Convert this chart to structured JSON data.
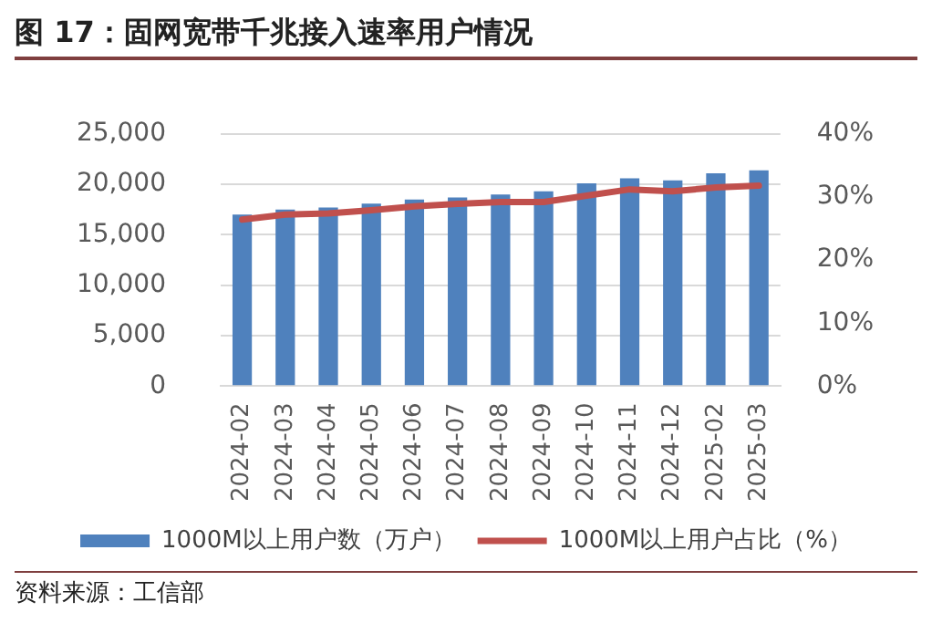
{
  "chart_data": {
    "type": "bar",
    "title": "图 17：固网宽带千兆接入速率用户情况",
    "categories": [
      "2024-02",
      "2024-03",
      "2024-04",
      "2024-05",
      "2024-06",
      "2024-07",
      "2024-08",
      "2024-09",
      "2024-10",
      "2024-11",
      "2024-12",
      "2025-02",
      "2025-03"
    ],
    "series": [
      {
        "name": "1000M以上用户数（万户）",
        "color": "#4f81bd",
        "values": [
          17000,
          17500,
          17700,
          18100,
          18500,
          18700,
          19000,
          19300,
          20100,
          20600,
          20400,
          21100,
          21400
        ]
      },
      {
        "name": "1000M以上用户占比（%）",
        "type": "line",
        "axis": "y2",
        "color": "#c0504d",
        "values": [
          26.4,
          27.2,
          27.4,
          27.9,
          28.5,
          28.9,
          29.2,
          29.2,
          30.2,
          31.2,
          30.9,
          31.5,
          31.8
        ]
      }
    ],
    "ylim": [
      0,
      25000
    ],
    "yticks": [
      0,
      {
        "value": 5000,
        "label": "5,000"
      },
      {
        "value": 10000,
        "label": "10,000"
      },
      {
        "value": 15000,
        "label": "15,000"
      },
      {
        "value": 20000,
        "label": "20,000"
      },
      {
        "value": 25000,
        "label": "25,000"
      }
    ],
    "y2lim": [
      0,
      40
    ],
    "y2ticks": [
      {
        "value": 0,
        "label": "0%"
      },
      {
        "value": 10,
        "label": "10%"
      },
      {
        "value": 20,
        "label": "20%"
      },
      {
        "value": 30,
        "label": "30%"
      },
      {
        "value": 40,
        "label": "40%"
      }
    ],
    "grid": "y",
    "legend": "bottom",
    "marker": "none",
    "annotations": [
      "资料来源：工信部"
    ]
  }
}
